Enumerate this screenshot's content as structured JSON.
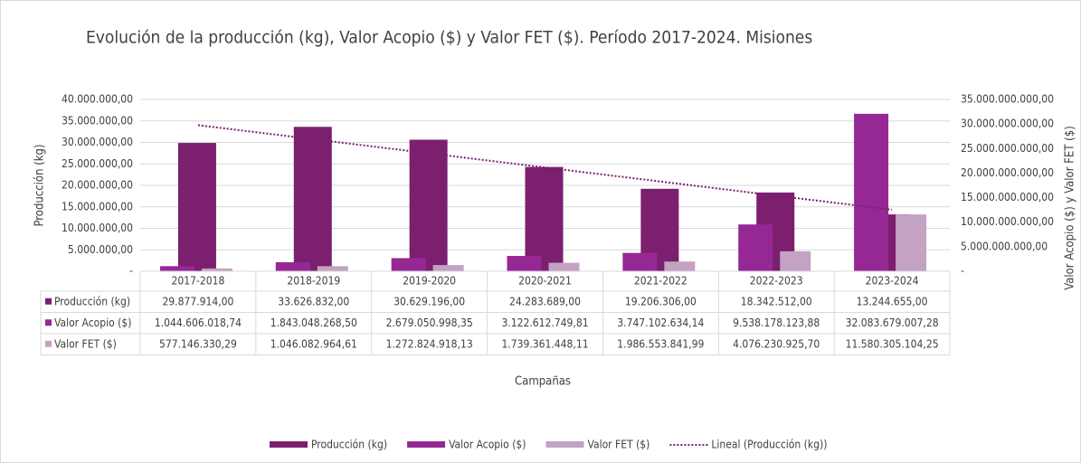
{
  "chart_data": {
    "type": "bar",
    "title": "Evolución de la producción (kg), Valor Acopio ($) y Valor FET ($). Período 2017-2024. Misiones",
    "x_label": "Campañas",
    "y_label": "Producción (kg)",
    "y2_label": "Valor Acopio ($) y Valor FET ($)",
    "categories": [
      "2017-2018",
      "2018-2019",
      "2019-2020",
      "2020-2021",
      "2021-2022",
      "2022-2023",
      "2023-2024"
    ],
    "series": [
      {
        "name": "Producción (kg)",
        "color": "#7b1f6e",
        "axis": "y",
        "values": [
          29877914.0,
          33626832.0,
          30629196.0,
          24283689.0,
          19206306.0,
          18342512.0,
          13244655.0
        ],
        "value_labels": [
          "29.877.914,00",
          "33.626.832,00",
          "30.629.196,00",
          "24.283.689,00",
          "19.206.306,00",
          "18.342.512,00",
          "13.244.655,00"
        ]
      },
      {
        "name": "Valor Acopio ($)",
        "color": "#962896",
        "axis": "y2",
        "values": [
          1044606018.74,
          1843048268.5,
          2679050998.35,
          3122612749.81,
          3747102634.14,
          9538178123.88,
          32083679007.28
        ],
        "value_labels": [
          "1.044.606.018,74",
          "1.843.048.268,50",
          "2.679.050.998,35",
          "3.122.612.749,81",
          "3.747.102.634,14",
          "9.538.178.123,88",
          "32.083.679.007,28"
        ]
      },
      {
        "name": "Valor FET ($)",
        "color": "#c3a2c3",
        "axis": "y2",
        "values": [
          577146330.29,
          1046082964.61,
          1272824918.13,
          1739361448.11,
          1986553841.99,
          4076230925.7,
          11580305104.25
        ],
        "value_labels": [
          "577.146.330,29",
          "1.046.082.964,61",
          "1.272.824.918,13",
          "1.739.361.448,11",
          "1.986.553.841,99",
          "4.076.230.925,70",
          "11.580.305.104,25"
        ]
      }
    ],
    "trendline": {
      "name": "Lineal (Producción (kg))",
      "color": "#7b1f6e",
      "values": [
        34020000,
        30740000,
        27450000,
        24170000,
        20890000,
        17610000,
        14330000
      ]
    },
    "ylim": [
      0,
      40000000
    ],
    "yticks": [
      {
        "value": 0,
        "label": "-"
      },
      {
        "value": 5000000,
        "label": "5.000.000,00"
      },
      {
        "value": 10000000,
        "label": "10.000.000,00"
      },
      {
        "value": 15000000,
        "label": "15.000.000,00"
      },
      {
        "value": 20000000,
        "label": "20.000.000,00"
      },
      {
        "value": 25000000,
        "label": "25.000.000,00"
      },
      {
        "value": 30000000,
        "label": "30.000.000,00"
      },
      {
        "value": 35000000,
        "label": "35.000.000,00"
      },
      {
        "value": 40000000,
        "label": "40.000.000,00"
      }
    ],
    "y2lim": [
      0,
      35000000000
    ],
    "y2ticks": [
      {
        "value": 0,
        "label": "-"
      },
      {
        "value": 5000000000,
        "label": "5.000.000.000,00"
      },
      {
        "value": 10000000000,
        "label": "10.000.000.000,00"
      },
      {
        "value": 15000000000,
        "label": "15.000.000.000,00"
      },
      {
        "value": 20000000000,
        "label": "20.000.000.000,00"
      },
      {
        "value": 25000000000,
        "label": "25.000.000.000,00"
      },
      {
        "value": 30000000000,
        "label": "30.000.000.000,00"
      },
      {
        "value": 35000000000,
        "label": "35.000.000.000,00"
      }
    ],
    "grid": true
  }
}
